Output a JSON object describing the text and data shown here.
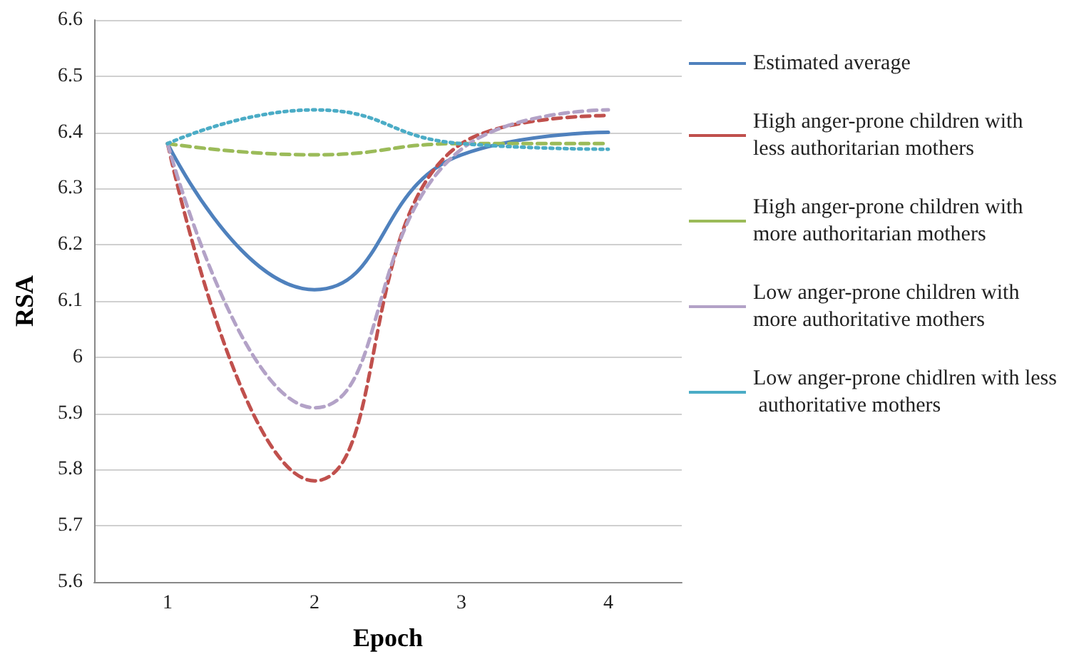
{
  "chart_data": {
    "type": "line",
    "xlabel": "Epoch",
    "ylabel": "RSA",
    "categories": [
      "1",
      "2",
      "3",
      "4"
    ],
    "series": [
      {
        "name": "Estimated average",
        "color": "#4f81bd",
        "line_style": "solid",
        "values": [
          6.38,
          6.12,
          6.36,
          6.4
        ]
      },
      {
        "name": "High anger-prone children with less authoritarian mothers",
        "color": "#c0504d",
        "line_style": "dashed",
        "values": [
          6.38,
          5.78,
          6.38,
          6.43
        ]
      },
      {
        "name": "High anger-prone children with more authoritarian mothers",
        "color": "#9bbb59",
        "line_style": "dashed",
        "values": [
          6.38,
          6.36,
          6.38,
          6.38
        ]
      },
      {
        "name": "Low anger-prone children with more authoritative mothers",
        "color": "#b3a2c7",
        "line_style": "dashed",
        "values": [
          6.38,
          5.91,
          6.37,
          6.44
        ]
      },
      {
        "name": "Low anger-prone chidlren with less authoritative mothers",
        "color": "#4bacc6",
        "line_style": "dotted",
        "values": [
          6.38,
          6.44,
          6.38,
          6.37
        ]
      }
    ],
    "ylim": [
      5.6,
      6.6
    ],
    "yticks": [
      5.6,
      5.7,
      5.8,
      5.9,
      6,
      6.1,
      6.2,
      6.3,
      6.4,
      6.5,
      6.6
    ],
    "grid": "y",
    "legend": "right",
    "marker": "none"
  }
}
